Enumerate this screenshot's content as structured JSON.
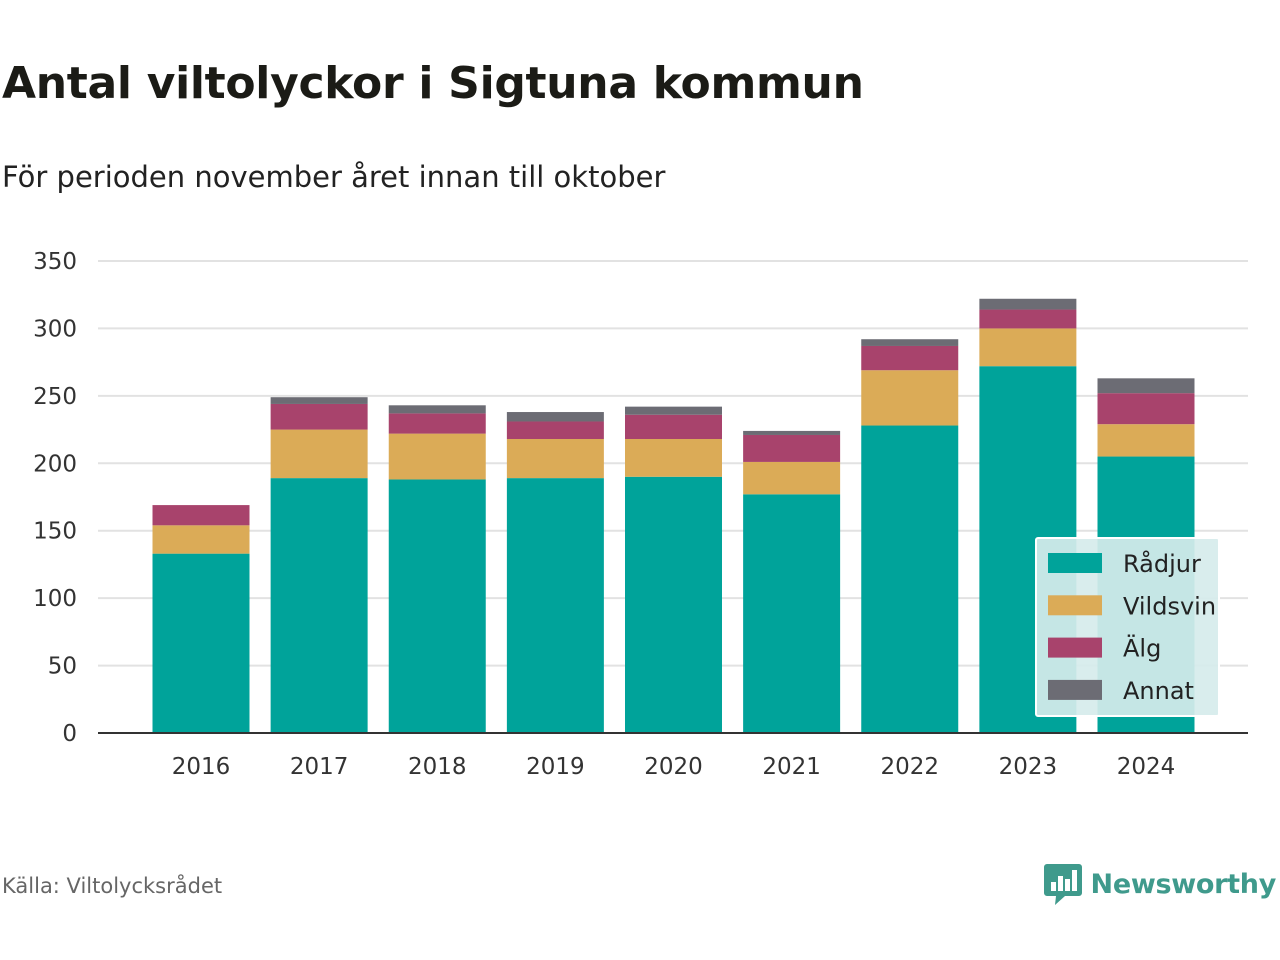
{
  "title": "Antal viltolyckor i Sigtuna kommun",
  "subtitle": "För perioden november året innan till oktober",
  "source": "Källa: Viltolycksrådet",
  "brand": {
    "name": "Newsworthy",
    "logo_icon": "bar-chart-speech-bubble-icon",
    "color": "#3f9a8c"
  },
  "chart_data": {
    "type": "bar",
    "stacked": true,
    "categories": [
      "2016",
      "2017",
      "2018",
      "2019",
      "2020",
      "2021",
      "2022",
      "2023",
      "2024"
    ],
    "series": [
      {
        "name": "Rådjur",
        "color": "#00a39a",
        "values": [
          133,
          189,
          188,
          189,
          190,
          177,
          228,
          272,
          205
        ]
      },
      {
        "name": "Vildsvin",
        "color": "#dbab57",
        "values": [
          21,
          36,
          34,
          29,
          28,
          24,
          41,
          28,
          24
        ]
      },
      {
        "name": "Älg",
        "color": "#a8436c",
        "values": [
          15,
          19,
          15,
          13,
          18,
          20,
          18,
          14,
          23
        ]
      },
      {
        "name": "Annat",
        "color": "#6c6c74",
        "values": [
          0,
          5,
          6,
          7,
          6,
          3,
          5,
          8,
          11
        ]
      }
    ],
    "ylim": [
      0,
      350
    ],
    "yticks": [
      0,
      50,
      100,
      150,
      200,
      250,
      300,
      350
    ],
    "xlabel": "",
    "ylabel": "",
    "grid": "horizontal",
    "legend": {
      "position": "bottom-right",
      "background": "#d6eceb"
    }
  }
}
